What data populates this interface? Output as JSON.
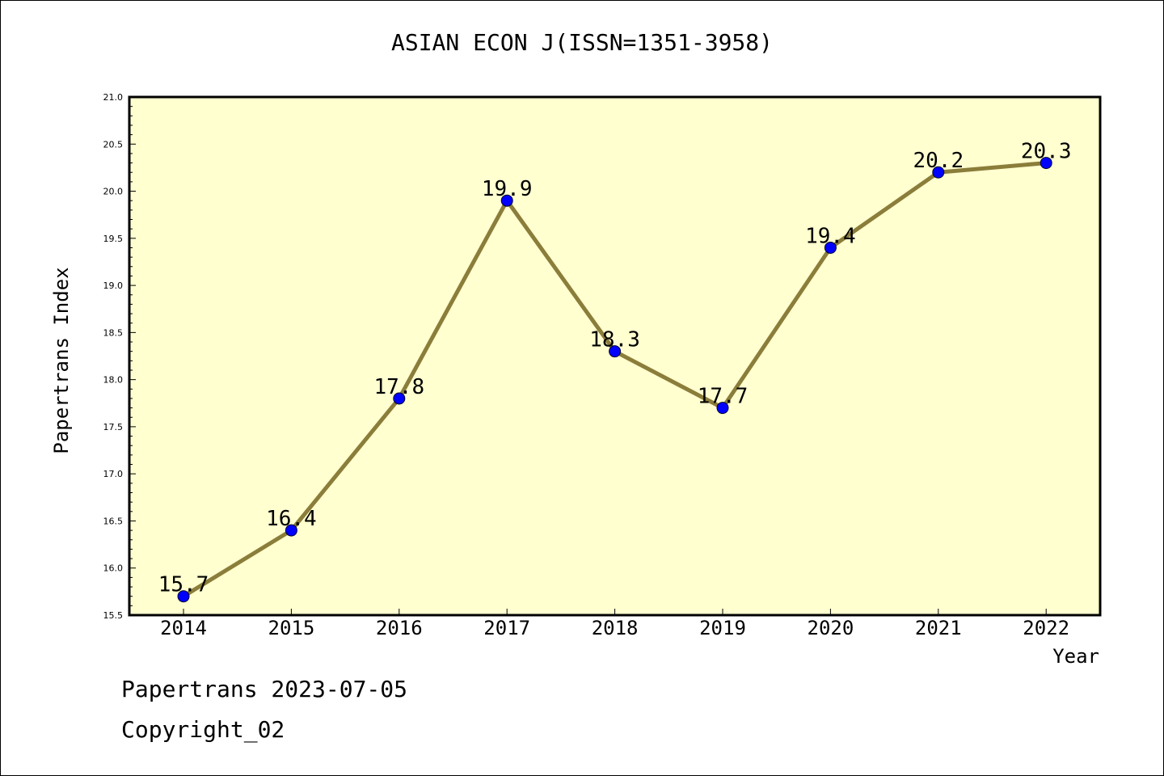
{
  "chart_data": {
    "type": "line",
    "title": "ASIAN ECON J(ISSN=1351-3958)",
    "xlabel": "Year",
    "ylabel": "Papertrans Index",
    "categories": [
      "2014",
      "2015",
      "2016",
      "2017",
      "2018",
      "2019",
      "2020",
      "2021",
      "2022"
    ],
    "series": [
      {
        "values": [
          15.7,
          16.4,
          17.8,
          19.9,
          18.3,
          17.7,
          19.4,
          20.2,
          20.3
        ]
      }
    ],
    "data_labels": [
      "15.7",
      "16.4",
      "17.8",
      "19.9",
      "18.3",
      "17.7",
      "19.4",
      "20.2",
      "20.3"
    ],
    "ylim": [
      15.5,
      21.0
    ],
    "yticks": [
      "15.5",
      "16.0",
      "16.5",
      "17.0",
      "17.5",
      "18.0",
      "18.5",
      "19.0",
      "19.5",
      "20.0",
      "20.5",
      "21.0"
    ],
    "grid": false,
    "line_color": "#8b7d3a",
    "marker_color": "#0000ff",
    "plot_background": "#ffffd0"
  },
  "footer": {
    "line1": "Papertrans 2023-07-05",
    "line2": "Copyright_02"
  }
}
